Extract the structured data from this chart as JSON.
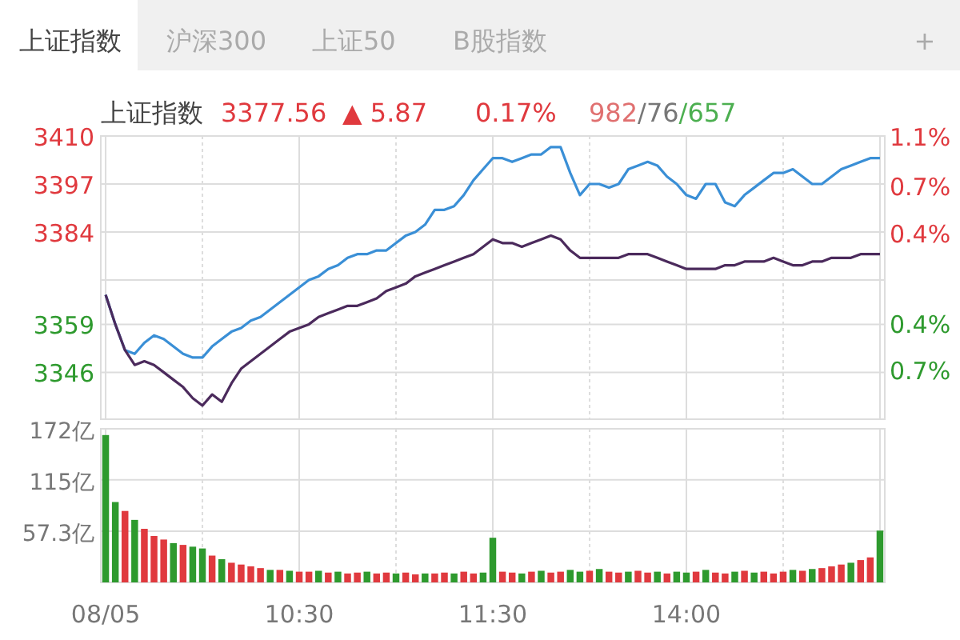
{
  "chart_data": [
    {
      "type": "line",
      "title": "上证指数",
      "annotations": [
        "3377.56",
        "▲ 5.87",
        "0.17%",
        "982/76/657",
        "上证指数",
        "沪深300",
        "上证50",
        "B股指数",
        "+"
      ],
      "categories": [
        null,
        null,
        null,
        null,
        null,
        null,
        null,
        null,
        null,
        null,
        null,
        null,
        null,
        null,
        null,
        null,
        null,
        null,
        null,
        null,
        null,
        null,
        null,
        null,
        null,
        null,
        null,
        null,
        null,
        null,
        null,
        null,
        null,
        null,
        null,
        null,
        null,
        null,
        null,
        null,
        null,
        null,
        null,
        null,
        null,
        null,
        null,
        null,
        null,
        null,
        null,
        null,
        null,
        null,
        null,
        null,
        null,
        null,
        null,
        null,
        null,
        null,
        null,
        null,
        null,
        null,
        null,
        null,
        null,
        null,
        null,
        null,
        null,
        null,
        null,
        null,
        null,
        null,
        null,
        null,
        null
      ],
      "ylim": [
        3333.3,
        3410
      ],
      "yticks": [
        3410,
        3397,
        3384,
        {
          "value": 3371,
          "label": null
        },
        3359,
        3346
      ],
      "y2lim": [
        -1.14,
        1.14
      ],
      "y2ticks": [
        {
          "value": 1.14,
          "label": "1.1%"
        },
        {
          "value": 0.74,
          "label": "0.7%"
        },
        {
          "value": 0.36,
          "label": "0.4%"
        },
        {
          "value": -0.37,
          "label": "0.4%"
        },
        {
          "value": -0.74,
          "label": "0.7%"
        }
      ],
      "tick_labels": "y",
      "grid": true,
      "series": [
        {
          "color": "#3a8fd6",
          "values": [
            3367,
            3359,
            3352,
            3351,
            3354,
            3356,
            3355,
            3353,
            3351,
            3350,
            3350,
            3353,
            3355,
            3357,
            3358,
            3360,
            3361,
            3363,
            3365,
            3367,
            3369,
            3371,
            3372,
            3374,
            3375,
            3377,
            3378,
            3378,
            3379,
            3379,
            3381,
            3383,
            3384,
            3386,
            3390,
            3390,
            3391,
            3394,
            3398,
            3401,
            3404,
            3404,
            3403,
            3404,
            3405,
            3405,
            3407,
            3407,
            3400,
            3394,
            3397,
            3397,
            3396,
            3397,
            3401,
            3402,
            3403,
            3402,
            3399,
            3397,
            3394,
            3393,
            3397,
            3397,
            3392,
            3391,
            3394,
            3396,
            3398,
            3400,
            3400,
            3401,
            3399,
            3397,
            3397,
            3399,
            3401,
            3402,
            3403,
            3404,
            3404
          ]
        },
        {
          "color": "#4b2a5c",
          "values": [
            3367,
            3359,
            3352,
            3348,
            3349,
            3348,
            3346,
            3344,
            3342,
            3339,
            3337,
            3340,
            3338,
            3343,
            3347,
            3349,
            3351,
            3353,
            3355,
            3357,
            3358,
            3359,
            3361,
            3362,
            3363,
            3364,
            3364,
            3365,
            3366,
            3368,
            3369,
            3370,
            3372,
            3373,
            3374,
            3375,
            3376,
            3377,
            3378,
            3380,
            3382,
            3381,
            3381,
            3380,
            3381,
            3382,
            3383,
            3382,
            3379,
            3377,
            3377,
            3377,
            3377,
            3377,
            3378,
            3378,
            3378,
            3377,
            3376,
            3375,
            3374,
            3374,
            3374,
            3374,
            3375,
            3375,
            3376,
            3376,
            3376,
            3377,
            3376,
            3375,
            3375,
            3376,
            3376,
            3377,
            3377,
            3377,
            3378,
            3378,
            3378
          ]
        }
      ]
    },
    {
      "type": "bar",
      "categories": [
        "08/05",
        null,
        null,
        null,
        null,
        null,
        null,
        null,
        null,
        null,
        null,
        null,
        null,
        null,
        null,
        null,
        null,
        null,
        null,
        null,
        "10:30",
        null,
        null,
        null,
        null,
        null,
        null,
        null,
        null,
        null,
        null,
        null,
        null,
        null,
        null,
        null,
        null,
        null,
        null,
        null,
        "11:30",
        null,
        null,
        null,
        null,
        null,
        null,
        null,
        null,
        null,
        null,
        null,
        null,
        null,
        null,
        null,
        null,
        null,
        null,
        null,
        "14:00",
        null,
        null,
        null,
        null,
        null,
        null,
        null,
        null,
        null,
        null,
        null,
        null,
        null,
        null,
        null,
        null,
        null,
        null,
        null,
        null
      ],
      "ylim": [
        0,
        172
      ],
      "yticks": [
        {
          "value": 57.3,
          "label": "57.3亿"
        },
        {
          "value": 115,
          "label": "115亿"
        },
        {
          "value": 172,
          "label": "172亿"
        }
      ],
      "grid": true,
      "values": [
        165,
        90,
        80,
        70,
        60,
        52,
        48,
        44,
        42,
        40,
        38,
        30,
        26,
        22,
        20,
        18,
        16,
        14,
        14,
        13,
        12,
        12,
        13,
        11,
        12,
        10,
        11,
        12,
        10,
        11,
        10,
        11,
        9,
        10,
        10,
        11,
        10,
        12,
        10,
        11,
        50,
        12,
        11,
        10,
        12,
        13,
        11,
        12,
        14,
        12,
        13,
        15,
        12,
        11,
        12,
        13,
        11,
        12,
        10,
        12,
        11,
        12,
        14,
        11,
        10,
        12,
        13,
        11,
        12,
        10,
        12,
        14,
        13,
        15,
        16,
        18,
        20,
        22,
        25,
        28,
        58
      ],
      "colors": [
        "#2e9a2e",
        "#2e9a2e",
        "#e0393e",
        "#2e9a2e",
        "#e0393e",
        "#e0393e",
        "#e0393e",
        "#2e9a2e",
        "#e0393e",
        "#2e9a2e",
        "#2e9a2e",
        "#e0393e",
        "#2e9a2e",
        "#e0393e",
        "#e0393e",
        "#e0393e",
        "#e0393e",
        "#2e9a2e",
        "#e0393e",
        "#2e9a2e",
        "#e0393e",
        "#e0393e",
        "#2e9a2e",
        "#e0393e",
        "#2e9a2e",
        "#e0393e",
        "#e0393e",
        "#2e9a2e",
        "#e0393e",
        "#e0393e",
        "#2e9a2e",
        "#e0393e",
        "#e0393e",
        "#2e9a2e",
        "#e0393e",
        "#e0393e",
        "#2e9a2e",
        "#e0393e",
        "#e0393e",
        "#2e9a2e",
        "#2e9a2e",
        "#e0393e",
        "#e0393e",
        "#2e9a2e",
        "#e0393e",
        "#2e9a2e",
        "#e0393e",
        "#e0393e",
        "#2e9a2e",
        "#2e9a2e",
        "#e0393e",
        "#2e9a2e",
        "#e0393e",
        "#e0393e",
        "#2e9a2e",
        "#e0393e",
        "#e0393e",
        "#2e9a2e",
        "#e0393e",
        "#2e9a2e",
        "#2e9a2e",
        "#e0393e",
        "#2e9a2e",
        "#e0393e",
        "#e0393e",
        "#2e9a2e",
        "#e0393e",
        "#2e9a2e",
        "#e0393e",
        "#e0393e",
        "#e0393e",
        "#2e9a2e",
        "#e0393e",
        "#2e9a2e",
        "#e0393e",
        "#e0393e",
        "#e0393e",
        "#2e9a2e",
        "#e0393e",
        "#e0393e",
        "#2e9a2e"
      ]
    }
  ]
}
